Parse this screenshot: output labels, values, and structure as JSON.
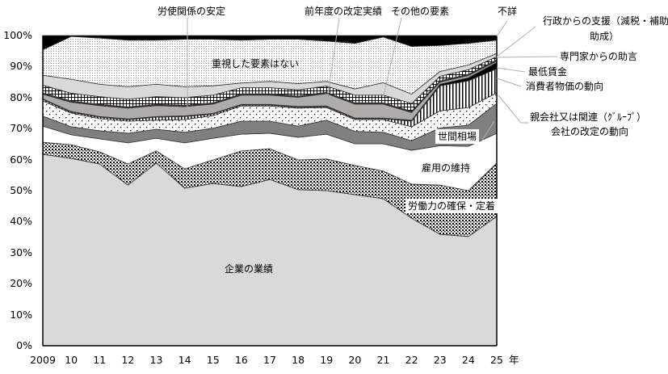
{
  "chart_data": {
    "type": "area",
    "stacked": true,
    "title": "",
    "xlabel": "年",
    "ylabel": "",
    "ylim": [
      0,
      100
    ],
    "yticks": [
      "0%",
      "10%",
      "20%",
      "30%",
      "40%",
      "50%",
      "60%",
      "70%",
      "80%",
      "90%",
      "100%"
    ],
    "categories": [
      "2009",
      "10",
      "11",
      "12",
      "13",
      "14",
      "15",
      "16",
      "17",
      "18",
      "19",
      "20",
      "21",
      "22",
      "23",
      "24",
      "25"
    ],
    "x_unit": "年",
    "series": [
      {
        "name": "企業の業績",
        "label": "企業の業績",
        "values": [
          61.7,
          60.4,
          58.6,
          51.8,
          58.9,
          50.8,
          52.3,
          51.3,
          53.6,
          50.3,
          50.0,
          48.7,
          47.4,
          41.1,
          35.9,
          35.2,
          41.7
        ]
      },
      {
        "name": "労働力の確保・定着",
        "label": "労働力の確保・定着",
        "values": [
          3.9,
          4.4,
          3.9,
          6.8,
          3.9,
          6.2,
          7.6,
          11.5,
          9.9,
          9.6,
          10.2,
          9.4,
          8.9,
          11.0,
          15.9,
          14.8,
          17.2
        ]
      },
      {
        "name": "雇用の維持",
        "label": "雇用の維持",
        "values": [
          5.2,
          3.2,
          4.2,
          6.8,
          4.1,
          8.4,
          7.0,
          5.4,
          5.0,
          7.3,
          8.0,
          7.0,
          8.8,
          10.9,
          12.7,
          14.3,
          9.6
        ]
      },
      {
        "name": "世間相場",
        "label": "世間相場",
        "values": [
          3.2,
          2.6,
          2.6,
          3.1,
          2.9,
          3.4,
          3.2,
          4.2,
          3.9,
          3.6,
          4.5,
          4.0,
          3.7,
          3.1,
          5.7,
          6.8,
          9.6
        ]
      },
      {
        "name": "親会社又は関連（グループ）会社の改定の動向",
        "label": "親会社又は関連（ｸﾞﾙｰﾌﾟ）",
        "label2": "会社の改定の動向",
        "values": [
          4.9,
          4.4,
          3.9,
          3.9,
          2.9,
          4.1,
          4.1,
          4.9,
          4.9,
          5.8,
          4.1,
          3.8,
          4.1,
          4.5,
          5.5,
          5.7,
          3.4
        ]
      },
      {
        "name": "消費者物価の動向",
        "label": "消費者物価の動向",
        "values": [
          0.5,
          0.3,
          0.5,
          0.5,
          1.0,
          1.0,
          0.5,
          0.3,
          0.3,
          0.3,
          0.3,
          0.3,
          0.3,
          1.8,
          8.1,
          8.6,
          7.8
        ]
      },
      {
        "name": "最低賃金",
        "label": "最低賃金",
        "values": [
          0.2,
          0.2,
          0.2,
          0.2,
          0.2,
          0.2,
          0.2,
          0.2,
          0.2,
          0.2,
          0.2,
          0.2,
          0.2,
          0.3,
          0.5,
          1.0,
          2.0
        ]
      },
      {
        "name": "前年度の改定実績",
        "label": "前年度の改定実績",
        "values": [
          1.5,
          3.0,
          3.5,
          3.5,
          3.5,
          3.0,
          3.0,
          3.0,
          3.0,
          3.0,
          4.0,
          4.5,
          4.5,
          2.5,
          0.7,
          0.7,
          0.5
        ]
      },
      {
        "name": "専門家からの助言",
        "label": "専門家からの助言",
        "values": [
          0.2,
          0.2,
          0.2,
          0.2,
          0.2,
          0.2,
          0.2,
          0.2,
          0.2,
          0.2,
          0.2,
          0.2,
          0.2,
          0.2,
          0.2,
          0.2,
          0.2
        ]
      },
      {
        "name": "行政からの支援（減税・補助・助成）",
        "label": "行政からの支援（減税・補助・",
        "label2": "助成）",
        "values": [
          0.2,
          0.2,
          0.2,
          0.2,
          0.2,
          0.2,
          0.2,
          0.2,
          0.2,
          0.2,
          0.2,
          0.2,
          0.2,
          0.2,
          0.2,
          0.2,
          0.2
        ]
      },
      {
        "name": "労使関係の安定",
        "label": "労使関係の安定",
        "values": [
          2.5,
          2.5,
          2.5,
          2.5,
          2.5,
          2.5,
          2.5,
          2.0,
          2.0,
          2.0,
          2.0,
          2.5,
          2.5,
          2.5,
          1.5,
          1.5,
          1.0
        ]
      },
      {
        "name": "その他の要素",
        "label": "その他の要素",
        "values": [
          3.2,
          4.5,
          4.0,
          4.0,
          4.0,
          3.5,
          3.0,
          1.5,
          2.0,
          2.0,
          1.5,
          2.0,
          4.0,
          3.0,
          1.5,
          1.5,
          1.0
        ]
      },
      {
        "name": "重視した要素はない",
        "label": "重視した要素はない",
        "values": [
          8.2,
          13.8,
          14.9,
          15.0,
          14.2,
          15.3,
          15.0,
          13.8,
          13.6,
          14.3,
          13.0,
          14.7,
          14.7,
          15.4,
          8.4,
          7.0,
          4.3
        ]
      },
      {
        "name": "不詳",
        "label": "不詳",
        "values": [
          4.6,
          0.3,
          0.8,
          1.5,
          1.5,
          1.2,
          1.2,
          1.5,
          1.2,
          1.2,
          1.8,
          2.5,
          0.5,
          3.5,
          3.2,
          2.5,
          1.5
        ]
      }
    ],
    "grid": false,
    "legend": "direct labels"
  }
}
